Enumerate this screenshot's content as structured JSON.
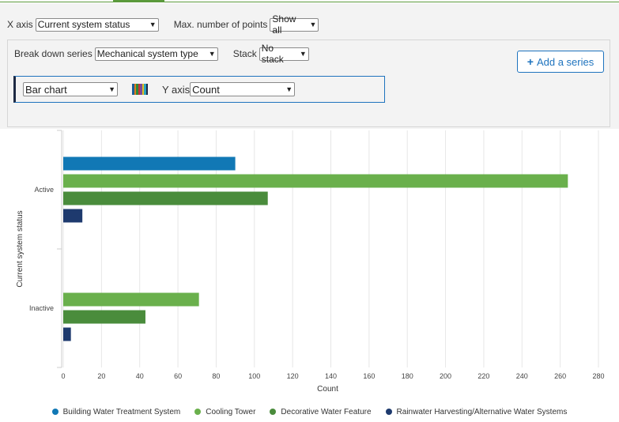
{
  "controls": {
    "x_axis_label": "X axis",
    "x_axis_value": "Current system status",
    "max_points_label": "Max. number of points",
    "max_points_value": "Show all",
    "break_down_label": "Break down series",
    "break_down_value": "Mechanical system type",
    "stack_label": "Stack",
    "stack_value": "No stack",
    "add_series_label": "Add a series",
    "chart_type_value": "Bar chart",
    "y_axis_label": "Y axis",
    "y_axis_value": "Count"
  },
  "palette_colors": [
    "#1a5e9a",
    "#e07b1a",
    "#2c8a3a",
    "#c8323a",
    "#7a4a9a",
    "#e0c020",
    "#27a2c0",
    "#1e2a44"
  ],
  "chart_data": {
    "type": "bar",
    "orientation": "horizontal",
    "categories": [
      "Active",
      "Inactive"
    ],
    "series": [
      {
        "name": "Building Water Treatment System",
        "color": "#1178b5",
        "values": [
          90,
          0
        ]
      },
      {
        "name": "Cooling Tower",
        "color": "#6ab04c",
        "values": [
          264,
          71
        ]
      },
      {
        "name": "Decorative Water Feature",
        "color": "#4a8c3c",
        "values": [
          107,
          43
        ]
      },
      {
        "name": "Rainwater Harvesting/Alternative Water Systems",
        "color": "#1e3a6e",
        "values": [
          10,
          4
        ]
      }
    ],
    "xlabel": "Count",
    "ylabel": "Current system status",
    "xlim": [
      0,
      280
    ],
    "xticks": [
      0,
      20,
      40,
      60,
      80,
      100,
      120,
      140,
      160,
      180,
      200,
      220,
      240,
      260,
      280
    ],
    "grid": true,
    "legend_position": "bottom"
  }
}
